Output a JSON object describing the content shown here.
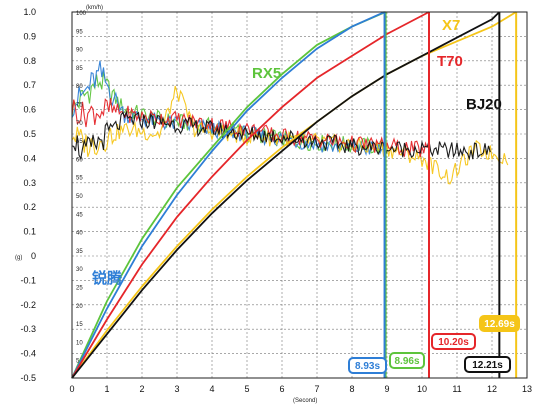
{
  "chart_data": {
    "type": "line",
    "x_unit": "(Second)",
    "y_left_unit": "(g)",
    "y_right_unit": "(km/h)",
    "xlim": [
      0,
      13
    ],
    "ylim_left": [
      -0.5,
      1.0
    ],
    "ylim_right": [
      0,
      100
    ],
    "x_ticks": [
      0,
      1,
      2,
      3,
      4,
      5,
      6,
      7,
      8,
      9,
      10,
      11,
      12,
      13
    ],
    "y_left_ticks": [
      "-0.5",
      "-0.4",
      "-0.3",
      "-0.2",
      "-0.1",
      "0",
      "0.1",
      "0.2",
      "0.3",
      "0.4",
      "0.5",
      "0.6",
      "0.7",
      "0.8",
      "0.9",
      "1.0"
    ],
    "y_right_ticks": [
      "0",
      "5",
      "10",
      "15",
      "20",
      "25",
      "30",
      "35",
      "40",
      "45",
      "50",
      "55",
      "60",
      "65",
      "70",
      "75",
      "80",
      "85",
      "90",
      "95",
      "100"
    ],
    "grid": true,
    "series": [
      {
        "name": "RX5",
        "color": "#5dc43c",
        "time_label": "8.96s",
        "finish_time": 8.96,
        "speed": [
          [
            0,
            0
          ],
          [
            1,
            21
          ],
          [
            2,
            38
          ],
          [
            3,
            52
          ],
          [
            4,
            63
          ],
          [
            5,
            74
          ],
          [
            6,
            83
          ],
          [
            7,
            91
          ],
          [
            8,
            96
          ],
          [
            8.96,
            100
          ]
        ],
        "accel": [
          [
            0,
            0.6
          ],
          [
            0.3,
            0.65
          ],
          [
            0.8,
            0.72
          ],
          [
            1.5,
            0.6
          ],
          [
            2.5,
            0.56
          ],
          [
            3.5,
            0.54
          ],
          [
            4.5,
            0.52
          ],
          [
            5.5,
            0.49
          ],
          [
            6.5,
            0.47
          ],
          [
            7.5,
            0.46
          ],
          [
            8.5,
            0.45
          ],
          [
            8.96,
            0.44
          ]
        ]
      },
      {
        "name": "锐腾",
        "color": "#2e7ed6",
        "time_label": "8.93s",
        "finish_time": 8.93,
        "speed": [
          [
            0,
            0
          ],
          [
            1,
            19
          ],
          [
            2,
            36
          ],
          [
            3,
            50
          ],
          [
            4,
            62
          ],
          [
            5,
            73
          ],
          [
            6,
            82
          ],
          [
            7,
            90
          ],
          [
            8,
            96
          ],
          [
            8.93,
            100
          ]
        ],
        "accel": [
          [
            0,
            0.62
          ],
          [
            0.3,
            0.66
          ],
          [
            0.8,
            0.75
          ],
          [
            1.5,
            0.58
          ],
          [
            2.5,
            0.55
          ],
          [
            3.5,
            0.53
          ],
          [
            4.5,
            0.51
          ],
          [
            5.5,
            0.49
          ],
          [
            6.5,
            0.47
          ],
          [
            7.5,
            0.45
          ],
          [
            8.5,
            0.44
          ],
          [
            8.93,
            0.43
          ]
        ]
      },
      {
        "name": "X7",
        "color": "#f5c518",
        "time_label": "12.69s",
        "finish_time": 12.69,
        "speed": [
          [
            0,
            0
          ],
          [
            1,
            13
          ],
          [
            2,
            25
          ],
          [
            3,
            36
          ],
          [
            4,
            46
          ],
          [
            5,
            55
          ],
          [
            6,
            63
          ],
          [
            7,
            70
          ],
          [
            8,
            77
          ],
          [
            9,
            83
          ],
          [
            10,
            88
          ],
          [
            11,
            92
          ],
          [
            12,
            96
          ],
          [
            12.69,
            100
          ]
        ],
        "accel": [
          [
            0,
            0.5
          ],
          [
            0.5,
            0.45
          ],
          [
            1.5,
            0.52
          ],
          [
            2.5,
            0.5
          ],
          [
            3,
            0.68
          ],
          [
            3.5,
            0.52
          ],
          [
            5,
            0.49
          ],
          [
            7,
            0.47
          ],
          [
            9,
            0.44
          ],
          [
            10,
            0.4
          ],
          [
            10.8,
            0.32
          ],
          [
            11.5,
            0.44
          ],
          [
            12.5,
            0.4
          ]
        ]
      },
      {
        "name": "T70",
        "color": "#e5262a",
        "time_label": "10.20s",
        "finish_time": 10.2,
        "speed": [
          [
            0,
            0
          ],
          [
            1,
            16
          ],
          [
            2,
            31
          ],
          [
            3,
            44
          ],
          [
            4,
            55
          ],
          [
            5,
            65
          ],
          [
            6,
            74
          ],
          [
            7,
            82
          ],
          [
            8,
            88
          ],
          [
            9,
            94
          ],
          [
            10.2,
            100
          ]
        ],
        "accel": [
          [
            0,
            0.61
          ],
          [
            0.3,
            0.58
          ],
          [
            1,
            0.6
          ],
          [
            2,
            0.57
          ],
          [
            3,
            0.56
          ],
          [
            4,
            0.54
          ],
          [
            5,
            0.52
          ],
          [
            6,
            0.49
          ],
          [
            7,
            0.48
          ],
          [
            8,
            0.46
          ],
          [
            9,
            0.45
          ],
          [
            10.2,
            0.43
          ]
        ]
      },
      {
        "name": "BJ20",
        "color": "#111111",
        "time_label": "12.21s",
        "finish_time": 12.21,
        "speed": [
          [
            0,
            0
          ],
          [
            1,
            12
          ],
          [
            2,
            24
          ],
          [
            3,
            35
          ],
          [
            4,
            45
          ],
          [
            5,
            54
          ],
          [
            6,
            62
          ],
          [
            7,
            70
          ],
          [
            8,
            77
          ],
          [
            9,
            83
          ],
          [
            10,
            88
          ],
          [
            11,
            93
          ],
          [
            12,
            98
          ],
          [
            12.21,
            100
          ]
        ],
        "accel": [
          [
            0,
            0.5
          ],
          [
            0.3,
            0.42
          ],
          [
            0.7,
            0.46
          ],
          [
            1.5,
            0.56
          ],
          [
            2.5,
            0.55
          ],
          [
            3.5,
            0.53
          ],
          [
            5,
            0.5
          ],
          [
            6,
            0.49
          ],
          [
            7,
            0.47
          ],
          [
            8,
            0.45
          ],
          [
            9,
            0.44
          ],
          [
            10,
            0.44
          ],
          [
            11,
            0.43
          ],
          [
            12,
            0.43
          ]
        ]
      }
    ]
  }
}
